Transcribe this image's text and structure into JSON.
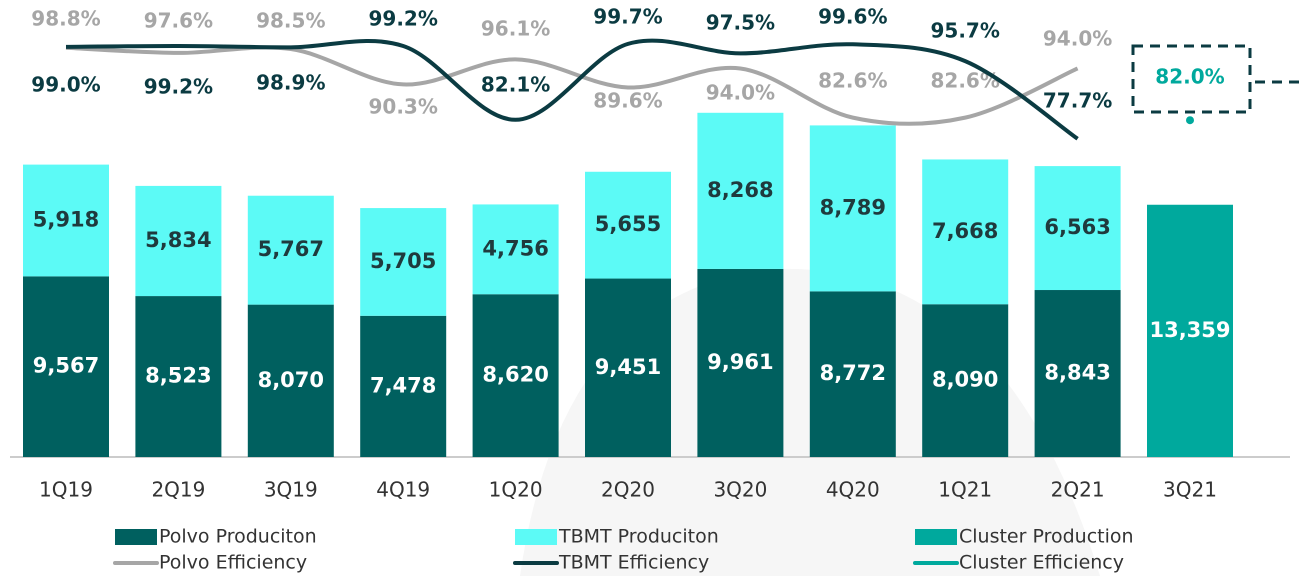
{
  "chart_data": {
    "type": "bar",
    "stacked": true,
    "categories": [
      "1Q19",
      "2Q19",
      "3Q19",
      "4Q19",
      "1Q20",
      "2Q20",
      "3Q20",
      "4Q20",
      "1Q21",
      "2Q21",
      "3Q21"
    ],
    "ylim": [
      0,
      17000
    ],
    "y2lim": [
      70,
      105
    ],
    "series": [
      {
        "name": "Polvo Produciton",
        "type": "bar",
        "color": "#00605f",
        "label_color": "#ffffff",
        "values": [
          9567,
          8523,
          8070,
          7478,
          8620,
          9451,
          9961,
          8772,
          8090,
          8843,
          null
        ],
        "value_labels": [
          "9,567",
          "8,523",
          "8,070",
          "7,478",
          "8,620",
          "9,451",
          "9,961",
          "8,772",
          "8,090",
          "8,843",
          null
        ]
      },
      {
        "name": "TBMT Produciton",
        "type": "bar",
        "color": "#5cfaf6",
        "label_color": "#1f3a3d",
        "values": [
          5918,
          5834,
          5767,
          5705,
          4756,
          5655,
          8268,
          8789,
          7668,
          6563,
          null
        ],
        "value_labels": [
          "5,918",
          "5,834",
          "5,767",
          "5,705",
          "4,756",
          "5,655",
          "8,268",
          "8,789",
          "7,668",
          "6,563",
          null
        ]
      },
      {
        "name": "Cluster Production",
        "type": "bar",
        "color": "#00a99d",
        "label_color": "#ffffff",
        "values": [
          null,
          null,
          null,
          null,
          null,
          null,
          null,
          null,
          null,
          null,
          13359
        ],
        "value_labels": [
          null,
          null,
          null,
          null,
          null,
          null,
          null,
          null,
          null,
          null,
          "13,359"
        ]
      },
      {
        "name": "Polvo Efficiency",
        "type": "line",
        "axis": "y2",
        "color": "#a6a6a6",
        "label_color": "#a6a6a6",
        "values": [
          98.8,
          97.6,
          98.5,
          90.3,
          96.1,
          89.6,
          94.0,
          82.6,
          82.6,
          94.0,
          null
        ],
        "value_labels": [
          "98.8%",
          "97.6%",
          "98.5%",
          "90.3%",
          "96.1%",
          "89.6%",
          "94.0%",
          "82.6%",
          "82.6%",
          "94.0%",
          null
        ]
      },
      {
        "name": "TBMT Efficiency",
        "type": "line",
        "axis": "y2",
        "color": "#0b3b42",
        "label_color": "#0b3b42",
        "values": [
          99.0,
          99.2,
          98.9,
          99.2,
          82.1,
          99.7,
          97.5,
          99.6,
          95.7,
          77.7,
          null
        ],
        "value_labels": [
          "99.0%",
          "99.2%",
          "98.9%",
          "99.2%",
          "82.1%",
          "99.7%",
          "97.5%",
          "99.6%",
          "95.7%",
          "77.7%",
          null
        ]
      },
      {
        "name": "Cluster Efficiency",
        "type": "line",
        "axis": "y2",
        "color": "#00a99d",
        "label_color": "#00a99d",
        "values": [
          null,
          null,
          null,
          null,
          null,
          null,
          null,
          null,
          null,
          null,
          82.0
        ],
        "value_labels": [
          null,
          null,
          null,
          null,
          null,
          null,
          null,
          null,
          null,
          null,
          "82.0%"
        ]
      }
    ]
  }
}
